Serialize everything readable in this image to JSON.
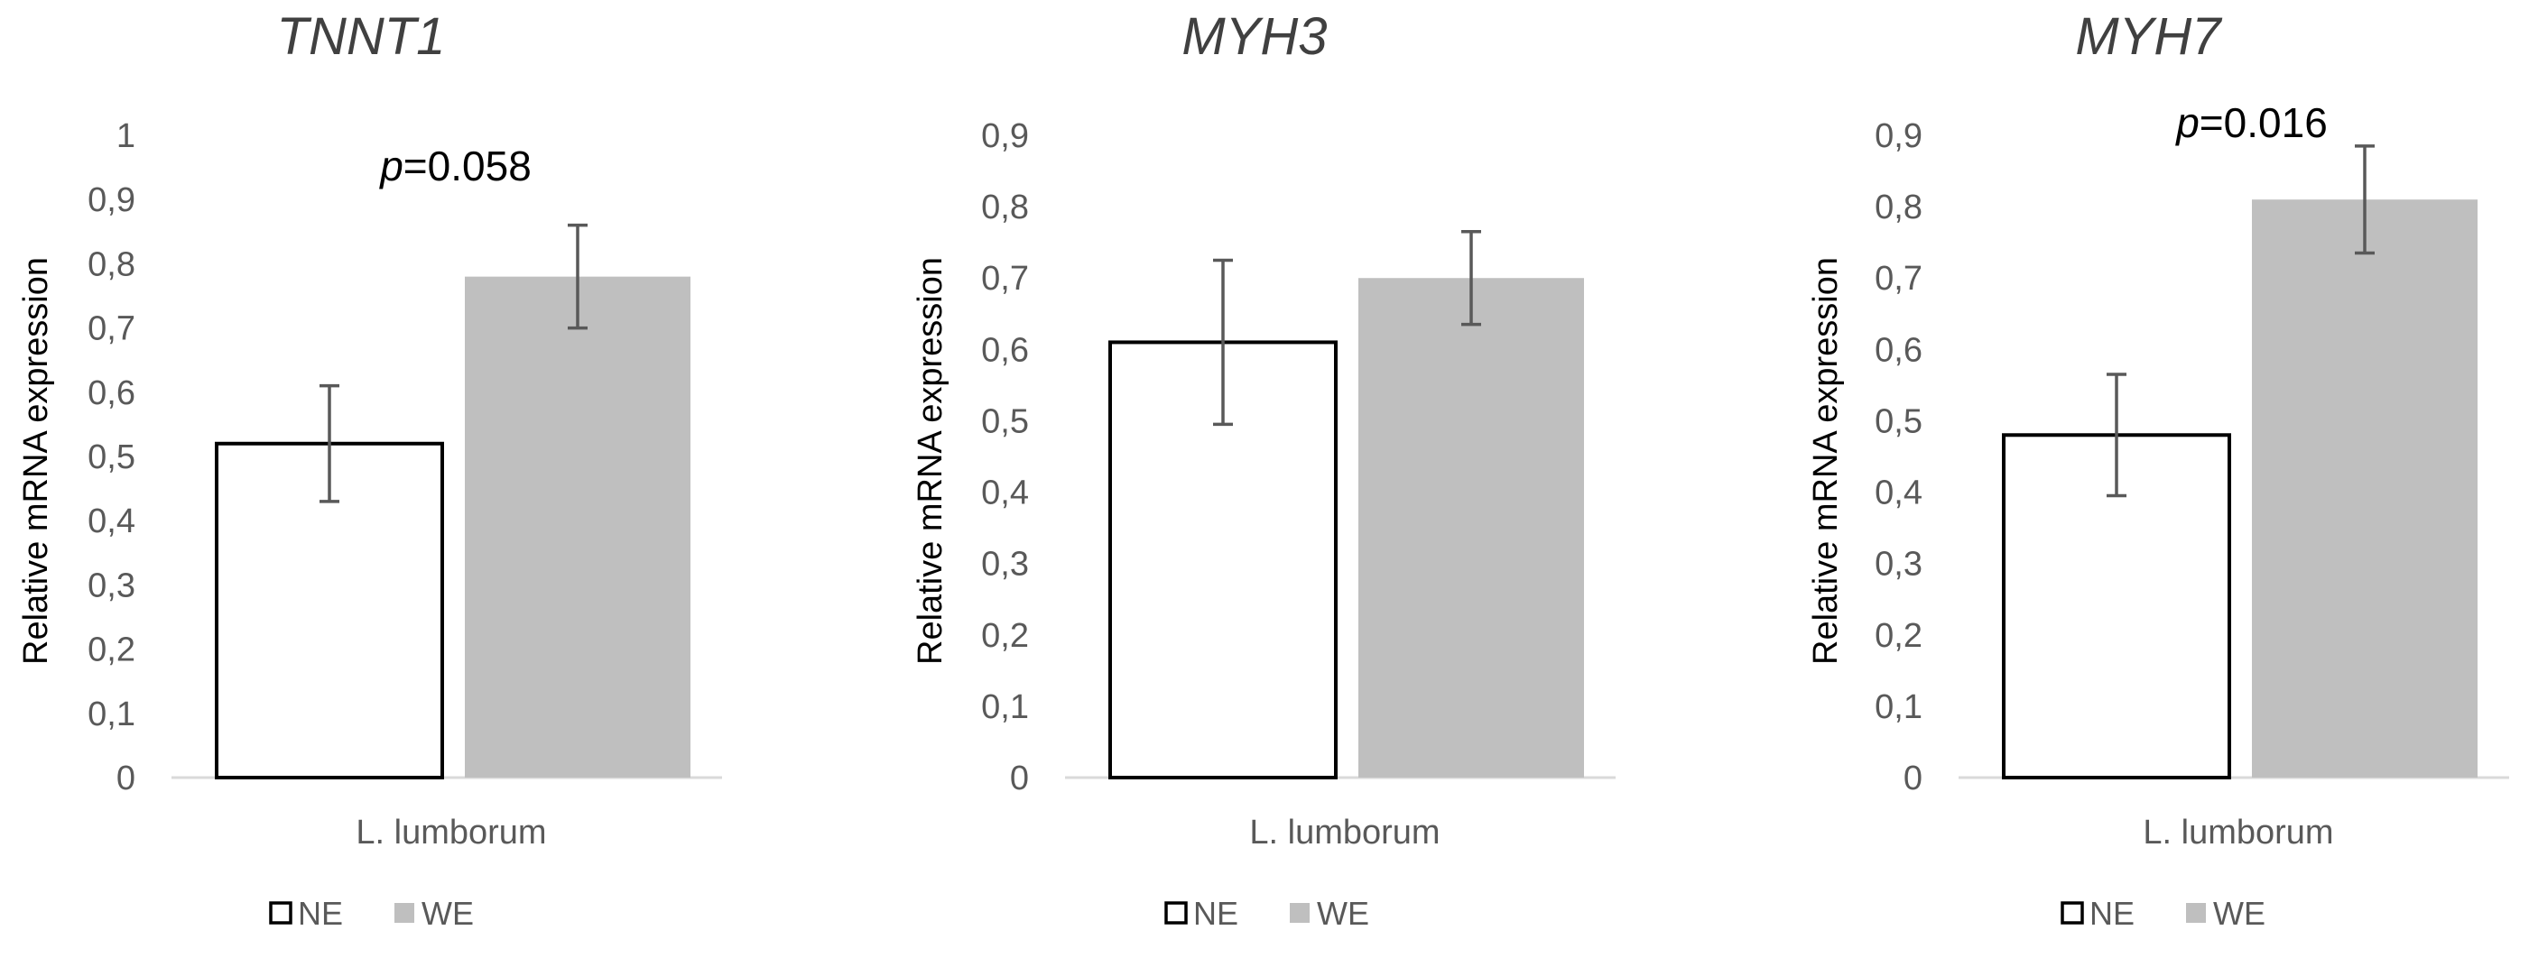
{
  "chart_data": [
    {
      "type": "bar",
      "title": "TNNT1",
      "ylabel": "Relative mRNA expression",
      "xlabel": "",
      "categories": [
        "L. lumborum"
      ],
      "ylim": [
        0,
        1
      ],
      "ytick_step": 0.1,
      "ytick_labels": [
        "0",
        "0,1",
        "0,2",
        "0,3",
        "0,4",
        "0,5",
        "0,6",
        "0,7",
        "0,8",
        "0,9",
        "1"
      ],
      "series": [
        {
          "name": "NE",
          "values": [
            0.52
          ],
          "error": [
            0.09
          ],
          "fill": "#ffffff",
          "stroke": "#000000"
        },
        {
          "name": "WE",
          "values": [
            0.78
          ],
          "error": [
            0.08
          ],
          "fill": "#bfbfbf",
          "stroke": "none"
        }
      ],
      "annotation": {
        "italic": "p",
        "text": "=0.058"
      },
      "legend": "bottom-left",
      "grid": false
    },
    {
      "type": "bar",
      "title": "MYH3",
      "ylabel": "Relative mRNA expression",
      "xlabel": "",
      "categories": [
        "L. lumborum"
      ],
      "ylim": [
        0,
        0.9
      ],
      "ytick_step": 0.1,
      "ytick_labels": [
        "0",
        "0,1",
        "0,2",
        "0,3",
        "0,4",
        "0,5",
        "0,6",
        "0,7",
        "0,8",
        "0,9"
      ],
      "series": [
        {
          "name": "NE",
          "values": [
            0.61
          ],
          "error": [
            0.115
          ],
          "fill": "#ffffff",
          "stroke": "#000000"
        },
        {
          "name": "WE",
          "values": [
            0.7
          ],
          "error": [
            0.065
          ],
          "fill": "#bfbfbf",
          "stroke": "none"
        }
      ],
      "annotation": null,
      "legend": "bottom-left",
      "grid": false
    },
    {
      "type": "bar",
      "title": "MYH7",
      "ylabel": "Relative mRNA expression",
      "xlabel": "",
      "categories": [
        "L. lumborum"
      ],
      "ylim": [
        0,
        0.9
      ],
      "ytick_step": 0.1,
      "ytick_labels": [
        "0",
        "0,1",
        "0,2",
        "0,3",
        "0,4",
        "0,5",
        "0,6",
        "0,7",
        "0,8",
        "0,9"
      ],
      "series": [
        {
          "name": "NE",
          "values": [
            0.48
          ],
          "error": [
            0.085
          ],
          "fill": "#ffffff",
          "stroke": "#000000"
        },
        {
          "name": "WE",
          "values": [
            0.81
          ],
          "error": [
            0.075
          ],
          "fill": "#bfbfbf",
          "stroke": "none"
        }
      ],
      "annotation": {
        "italic": "p",
        "text": "=0.016"
      },
      "legend": "bottom-left",
      "grid": false
    }
  ],
  "colors": {
    "axis": "#d9d9d9",
    "tick_text": "#595959",
    "error_bar": "#595959",
    "title": "#404040",
    "label": "#000000"
  }
}
